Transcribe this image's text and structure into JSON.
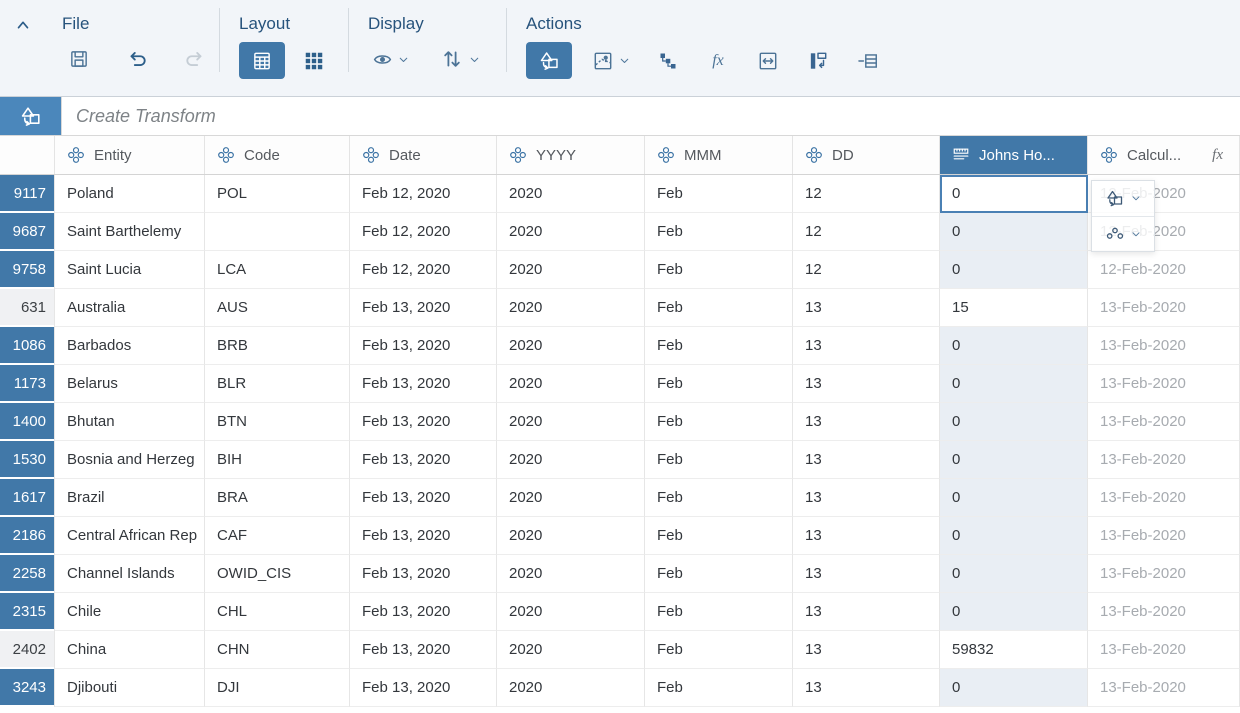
{
  "colors": {
    "accent": "#4178a8",
    "banner_icon": "#4b87bb",
    "shade": "#e9eef4",
    "muted_text": "#a7abb0"
  },
  "glyphs": {
    "fx": "fx"
  },
  "toolbar": {
    "groups": [
      {
        "label": "File",
        "buttons": [
          {
            "name": "save",
            "icon": "save-icon"
          },
          {
            "name": "undo",
            "icon": "undo-icon"
          },
          {
            "name": "redo",
            "icon": "redo-icon",
            "disabled": true
          }
        ]
      },
      {
        "label": "Layout",
        "buttons": [
          {
            "name": "table-view",
            "icon": "table-view-icon",
            "active": true
          },
          {
            "name": "grid-view",
            "icon": "grid-view-icon"
          }
        ]
      },
      {
        "label": "Display",
        "buttons": [
          {
            "name": "visibility",
            "icon": "eye-icon",
            "has_dropdown": true
          },
          {
            "name": "sort",
            "icon": "sort-icon",
            "has_dropdown": true
          }
        ]
      },
      {
        "label": "Actions",
        "buttons": [
          {
            "name": "create-transform",
            "icon": "transform-icon",
            "active": true
          },
          {
            "name": "geo-map",
            "icon": "map-pin-icon",
            "has_dropdown": true
          },
          {
            "name": "hierarchy",
            "icon": "hierarchy-icon"
          },
          {
            "name": "formula",
            "icon": "fx-icon"
          },
          {
            "name": "resize",
            "icon": "resize-icon"
          },
          {
            "name": "split-column",
            "icon": "split-column-icon"
          },
          {
            "name": "delete-rows",
            "icon": "delete-rows-icon"
          }
        ]
      }
    ]
  },
  "transform_bar": {
    "title": "Create Transform",
    "icon": "transform-icon"
  },
  "table": {
    "columns": [
      {
        "key": "entity",
        "label": "Entity",
        "icon": "dimension-icon"
      },
      {
        "key": "code",
        "label": "Code",
        "icon": "dimension-icon"
      },
      {
        "key": "date",
        "label": "Date",
        "icon": "dimension-icon"
      },
      {
        "key": "yyyy",
        "label": "YYYY",
        "icon": "dimension-icon"
      },
      {
        "key": "mmm",
        "label": "MMM",
        "icon": "dimension-icon"
      },
      {
        "key": "dd",
        "label": "DD",
        "icon": "dimension-icon"
      },
      {
        "key": "johns",
        "label": "Johns Ho...",
        "icon": "measure-icon",
        "selected": true
      },
      {
        "key": "calc",
        "label": "Calcul...",
        "icon": "dimension-icon",
        "formula": true
      }
    ],
    "rows": [
      {
        "num": "9117",
        "entity": "Poland",
        "code": "POL",
        "date": "Feb 12, 2020",
        "yyyy": "2020",
        "mmm": "Feb",
        "dd": "12",
        "johns": "0",
        "calc": "12-Feb-2020",
        "num_muted": false,
        "johns_plain": false,
        "johns_selected": true
      },
      {
        "num": "9687",
        "entity": "Saint Barthelemy",
        "code": "",
        "date": "Feb 12, 2020",
        "yyyy": "2020",
        "mmm": "Feb",
        "dd": "12",
        "johns": "0",
        "calc": "12-Feb-2020",
        "num_muted": false,
        "johns_plain": false,
        "johns_selected": false
      },
      {
        "num": "9758",
        "entity": "Saint Lucia",
        "code": "LCA",
        "date": "Feb 12, 2020",
        "yyyy": "2020",
        "mmm": "Feb",
        "dd": "12",
        "johns": "0",
        "calc": "12-Feb-2020",
        "num_muted": false,
        "johns_plain": false,
        "johns_selected": false
      },
      {
        "num": "631",
        "entity": "Australia",
        "code": "AUS",
        "date": "Feb 13, 2020",
        "yyyy": "2020",
        "mmm": "Feb",
        "dd": "13",
        "johns": "15",
        "calc": "13-Feb-2020",
        "num_muted": true,
        "johns_plain": true,
        "johns_selected": false
      },
      {
        "num": "1086",
        "entity": "Barbados",
        "code": "BRB",
        "date": "Feb 13, 2020",
        "yyyy": "2020",
        "mmm": "Feb",
        "dd": "13",
        "johns": "0",
        "calc": "13-Feb-2020",
        "num_muted": false,
        "johns_plain": false,
        "johns_selected": false
      },
      {
        "num": "1173",
        "entity": "Belarus",
        "code": "BLR",
        "date": "Feb 13, 2020",
        "yyyy": "2020",
        "mmm": "Feb",
        "dd": "13",
        "johns": "0",
        "calc": "13-Feb-2020",
        "num_muted": false,
        "johns_plain": false,
        "johns_selected": false
      },
      {
        "num": "1400",
        "entity": "Bhutan",
        "code": "BTN",
        "date": "Feb 13, 2020",
        "yyyy": "2020",
        "mmm": "Feb",
        "dd": "13",
        "johns": "0",
        "calc": "13-Feb-2020",
        "num_muted": false,
        "johns_plain": false,
        "johns_selected": false
      },
      {
        "num": "1530",
        "entity": "Bosnia and Herzeg",
        "code": "BIH",
        "date": "Feb 13, 2020",
        "yyyy": "2020",
        "mmm": "Feb",
        "dd": "13",
        "johns": "0",
        "calc": "13-Feb-2020",
        "num_muted": false,
        "johns_plain": false,
        "johns_selected": false
      },
      {
        "num": "1617",
        "entity": "Brazil",
        "code": "BRA",
        "date": "Feb 13, 2020",
        "yyyy": "2020",
        "mmm": "Feb",
        "dd": "13",
        "johns": "0",
        "calc": "13-Feb-2020",
        "num_muted": false,
        "johns_plain": false,
        "johns_selected": false
      },
      {
        "num": "2186",
        "entity": "Central African Rep",
        "code": "CAF",
        "date": "Feb 13, 2020",
        "yyyy": "2020",
        "mmm": "Feb",
        "dd": "13",
        "johns": "0",
        "calc": "13-Feb-2020",
        "num_muted": false,
        "johns_plain": false,
        "johns_selected": false
      },
      {
        "num": "2258",
        "entity": "Channel Islands",
        "code": "OWID_CIS",
        "date": "Feb 13, 2020",
        "yyyy": "2020",
        "mmm": "Feb",
        "dd": "13",
        "johns": "0",
        "calc": "13-Feb-2020",
        "num_muted": false,
        "johns_plain": false,
        "johns_selected": false
      },
      {
        "num": "2315",
        "entity": "Chile",
        "code": "CHL",
        "date": "Feb 13, 2020",
        "yyyy": "2020",
        "mmm": "Feb",
        "dd": "13",
        "johns": "0",
        "calc": "13-Feb-2020",
        "num_muted": false,
        "johns_plain": false,
        "johns_selected": false
      },
      {
        "num": "2402",
        "entity": "China",
        "code": "CHN",
        "date": "Feb 13, 2020",
        "yyyy": "2020",
        "mmm": "Feb",
        "dd": "13",
        "johns": "59832",
        "calc": "13-Feb-2020",
        "num_muted": true,
        "johns_plain": true,
        "johns_selected": false
      },
      {
        "num": "3243",
        "entity": "Djibouti",
        "code": "DJI",
        "date": "Feb 13, 2020",
        "yyyy": "2020",
        "mmm": "Feb",
        "dd": "13",
        "johns": "0",
        "calc": "13-Feb-2020",
        "num_muted": false,
        "johns_plain": false,
        "johns_selected": false
      }
    ]
  },
  "popup": {
    "buttons": [
      {
        "name": "transform-menu",
        "icon": "transform-icon"
      },
      {
        "name": "group-menu",
        "icon": "group-icon"
      }
    ]
  }
}
